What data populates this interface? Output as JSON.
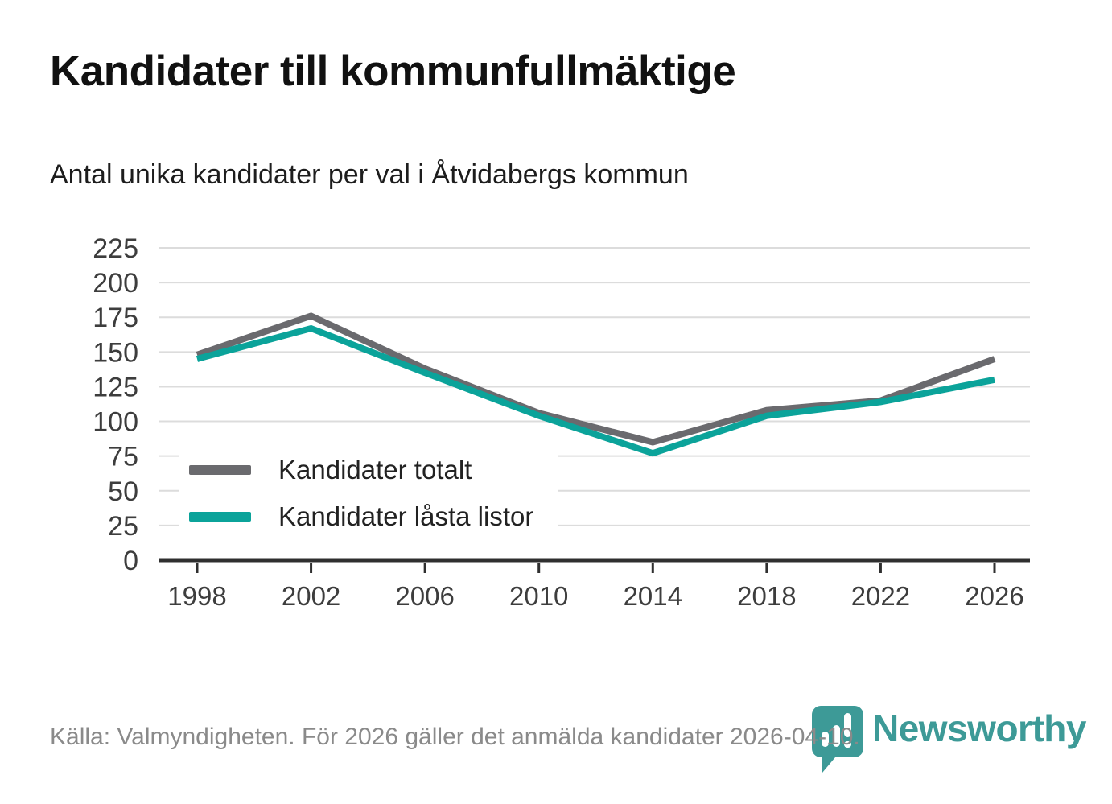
{
  "header": {
    "title": "Kandidater till kommunfullmäktige",
    "subtitle": "Antal unika kandidater per val i Åtvidabergs kommun"
  },
  "chart_data": {
    "type": "line",
    "categories": [
      "1998",
      "2002",
      "2006",
      "2010",
      "2014",
      "2018",
      "2022",
      "2026"
    ],
    "series": [
      {
        "name": "Kandidater totalt",
        "color": "#6a6a6e",
        "values": [
          148,
          176,
          138,
          106,
          85,
          108,
          115,
          145
        ]
      },
      {
        "name": "Kandidater låsta listor",
        "color": "#0ba39a",
        "values": [
          145,
          167,
          135,
          104,
          77,
          104,
          114,
          130
        ]
      }
    ],
    "ylim": [
      0,
      225
    ],
    "yticks": [
      0,
      25,
      50,
      75,
      100,
      125,
      150,
      175,
      200,
      225
    ],
    "grid": true,
    "legend_position": "inside-bottom-left",
    "line_width": 8
  },
  "footer": {
    "source": "Källa: Valmyndigheten. För 2026 gäller det anmälda kandidater 2026-04-10."
  },
  "branding": {
    "name": "Newsworthy",
    "color": "#3d9a97",
    "icon": "newsworthy-bubble-barchart-icon"
  },
  "colors": {
    "axis": "#2f2f2f",
    "grid": "#dcdcdc",
    "tick_label": "#3d3d3d",
    "title": "#111111",
    "subtitle": "#1d1d1d",
    "source_text": "#8a8a8a",
    "legend_text": "#222222",
    "background": "#ffffff"
  }
}
